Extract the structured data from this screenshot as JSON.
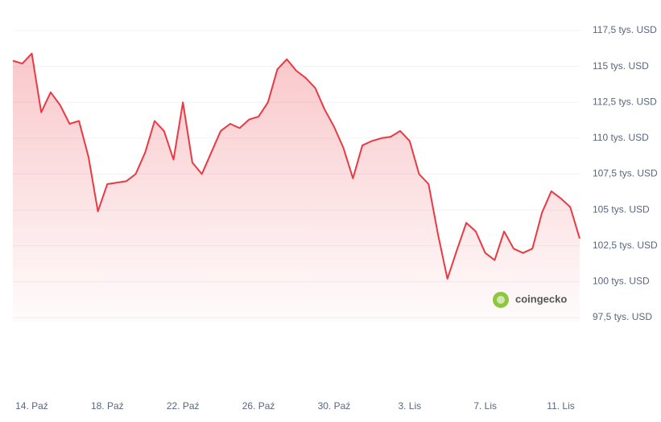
{
  "chart_data": {
    "type": "line",
    "watermark": "coingecko",
    "categories": [
      null,
      null,
      "14. Paź",
      null,
      null,
      null,
      null,
      null,
      null,
      null,
      "18. Paź",
      null,
      null,
      null,
      null,
      null,
      null,
      null,
      "22. Paź",
      null,
      null,
      null,
      null,
      null,
      null,
      null,
      "26. Paź",
      null,
      null,
      null,
      null,
      null,
      null,
      null,
      "30. Paź",
      null,
      null,
      null,
      null,
      null,
      null,
      null,
      "3. Lis",
      null,
      null,
      null,
      null,
      null,
      null,
      null,
      "7. Lis",
      null,
      null,
      null,
      null,
      null,
      null,
      null,
      "11. Lis",
      null,
      null
    ],
    "series": [
      {
        "color": "#ea3943",
        "values": [
          115400,
          115200,
          115900,
          111800,
          113200,
          112300,
          111000,
          111200,
          108700,
          104900,
          106800,
          106900,
          107000,
          107500,
          109000,
          111200,
          110500,
          108500,
          112500,
          108300,
          107500,
          109000,
          110500,
          111000,
          110700,
          111300,
          111500,
          112500,
          114800,
          115500,
          114700,
          114200,
          113500,
          112000,
          110800,
          109300,
          107200,
          109500,
          109800,
          110000,
          110100,
          110500,
          109800,
          107500,
          106800,
          103300,
          100200,
          102200,
          104100,
          103500,
          102000,
          101500,
          103500,
          102300,
          102000,
          102300,
          104800,
          106300,
          105800,
          105200,
          103000
        ]
      }
    ],
    "ylim": [
      97500,
      117500
    ],
    "yticks": [
      {
        "value": 97500,
        "label": "97,5 tys. USD"
      },
      {
        "value": 100000,
        "label": "100 tys. USD"
      },
      {
        "value": 102500,
        "label": "102,5 tys. USD"
      },
      {
        "value": 105000,
        "label": "105 tys. USD"
      },
      {
        "value": 107500,
        "label": "107,5 tys. USD"
      },
      {
        "value": 110000,
        "label": "110 tys. USD"
      },
      {
        "value": 112500,
        "label": "112,5 tys. USD"
      },
      {
        "value": 115000,
        "label": "115 tys. USD"
      },
      {
        "value": 117500,
        "label": "117,5 tys. USD"
      }
    ],
    "grid": true
  }
}
